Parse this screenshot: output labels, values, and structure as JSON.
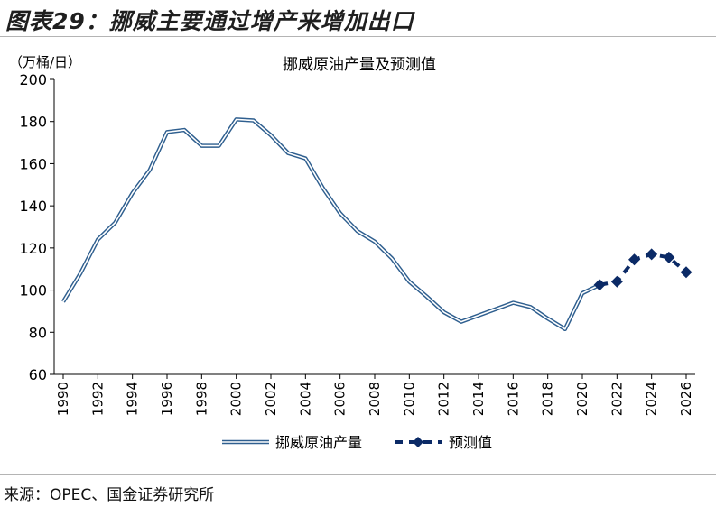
{
  "figure": {
    "title": "图表29：挪威主要通过增产来增加出口",
    "source": "来源：OPEC、国金证券研究所"
  },
  "chart_data": {
    "type": "line",
    "title": "挪威原油产量及预测值",
    "unit_label": "（万桶/日）",
    "xlabel": "",
    "ylabel": "",
    "ylim": [
      60,
      200
    ],
    "yticks": [
      60,
      80,
      100,
      120,
      140,
      160,
      180,
      200
    ],
    "xlim": [
      1990,
      2026
    ],
    "xticks": [
      "1990",
      "1992",
      "1994",
      "1996",
      "1998",
      "2000",
      "2002",
      "2004",
      "2006",
      "2008",
      "2010",
      "2012",
      "2014",
      "2016",
      "2018",
      "2020",
      "2022",
      "2024",
      "2026"
    ],
    "grid": false,
    "legend_position": "bottom",
    "series": [
      {
        "name": "挪威原油产量",
        "color": "#2f5f8f",
        "style": "double-line",
        "x": [
          1990,
          1991,
          1992,
          1993,
          1994,
          1995,
          1996,
          1997,
          1998,
          1999,
          2000,
          2001,
          2002,
          2003,
          2004,
          2005,
          2006,
          2007,
          2008,
          2009,
          2010,
          2011,
          2012,
          2013,
          2014,
          2015,
          2016,
          2017,
          2018,
          2019,
          2020,
          2021
        ],
        "values": [
          94.5,
          108,
          124,
          132,
          146,
          157,
          175,
          176,
          168.5,
          168.5,
          181,
          180.5,
          173.5,
          165,
          162.5,
          148.5,
          136.5,
          128,
          123,
          115,
          104,
          97,
          89.5,
          85,
          88,
          91,
          94,
          92,
          86.5,
          81.5,
          98.5,
          102.5
        ]
      },
      {
        "name": "预测值",
        "color": "#0b2a66",
        "style": "dashed-diamond",
        "x": [
          2021,
          2022,
          2023,
          2024,
          2025,
          2026
        ],
        "values": [
          102.5,
          104,
          114.5,
          117,
          115.5,
          108.5
        ]
      }
    ]
  }
}
